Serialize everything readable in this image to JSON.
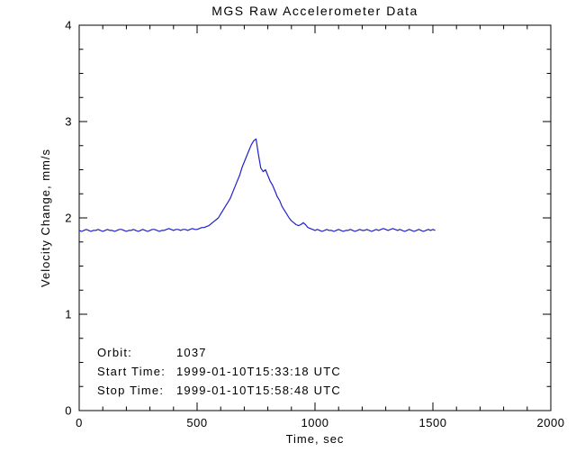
{
  "page": {
    "background": "#ffffff"
  },
  "chart_data": {
    "type": "line",
    "title": "MGS Raw Accelerometer Data",
    "xlabel": "Time, sec",
    "ylabel": "Velocity Change, mm/s",
    "xlim": [
      0,
      2000
    ],
    "ylim": [
      0,
      4
    ],
    "x_ticks": [
      0,
      500,
      1000,
      1500,
      2000
    ],
    "y_ticks": [
      0,
      1,
      2,
      3,
      4
    ],
    "x_minor_step": 100,
    "y_minor_step": 0.25,
    "grid": false,
    "legend": "none",
    "line_color": "#2020cc",
    "axis_color": "#000000",
    "series": [
      {
        "name": "velocity_change",
        "x_start": 0,
        "x_step": 10,
        "y": [
          1.87,
          1.86,
          1.87,
          1.88,
          1.87,
          1.86,
          1.87,
          1.87,
          1.88,
          1.87,
          1.86,
          1.87,
          1.88,
          1.87,
          1.87,
          1.86,
          1.87,
          1.88,
          1.88,
          1.87,
          1.86,
          1.87,
          1.87,
          1.88,
          1.87,
          1.86,
          1.87,
          1.88,
          1.87,
          1.86,
          1.87,
          1.88,
          1.88,
          1.87,
          1.86,
          1.87,
          1.87,
          1.88,
          1.89,
          1.88,
          1.87,
          1.88,
          1.88,
          1.87,
          1.88,
          1.88,
          1.87,
          1.88,
          1.89,
          1.88,
          1.88,
          1.89,
          1.9,
          1.9,
          1.91,
          1.92,
          1.94,
          1.96,
          1.98,
          2.0,
          2.04,
          2.08,
          2.12,
          2.16,
          2.2,
          2.26,
          2.32,
          2.38,
          2.44,
          2.52,
          2.58,
          2.64,
          2.7,
          2.76,
          2.8,
          2.82,
          2.66,
          2.52,
          2.48,
          2.5,
          2.44,
          2.38,
          2.34,
          2.28,
          2.22,
          2.18,
          2.12,
          2.08,
          2.04,
          2.0,
          1.97,
          1.95,
          1.93,
          1.92,
          1.93,
          1.95,
          1.93,
          1.9,
          1.89,
          1.88,
          1.87,
          1.88,
          1.87,
          1.86,
          1.87,
          1.88,
          1.87,
          1.87,
          1.86,
          1.87,
          1.88,
          1.87,
          1.86,
          1.87,
          1.87,
          1.88,
          1.87,
          1.86,
          1.87,
          1.88,
          1.87,
          1.87,
          1.88,
          1.87,
          1.86,
          1.87,
          1.88,
          1.87,
          1.88,
          1.89,
          1.88,
          1.87,
          1.88,
          1.89,
          1.88,
          1.87,
          1.88,
          1.87,
          1.86,
          1.87,
          1.88,
          1.87,
          1.86,
          1.87,
          1.88,
          1.87,
          1.86,
          1.87,
          1.88,
          1.87,
          1.88,
          1.87
        ]
      }
    ],
    "annotations": [
      {
        "label": "Orbit:",
        "value": "1037"
      },
      {
        "label": "Start Time:",
        "value": "1999-01-10T15:33:18 UTC"
      },
      {
        "label": "Stop Time:",
        "value": "1999-01-10T15:58:48 UTC"
      }
    ]
  }
}
